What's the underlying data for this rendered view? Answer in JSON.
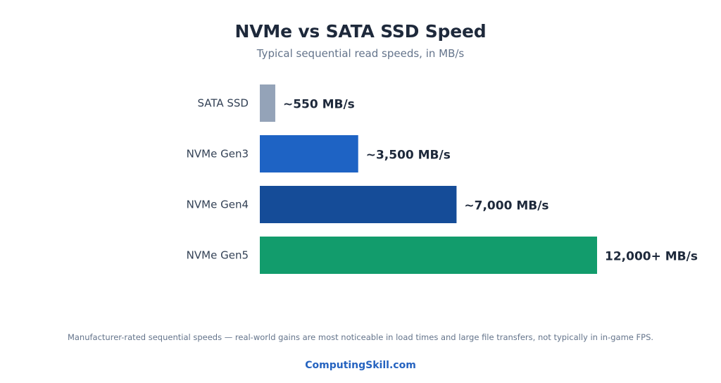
{
  "header": {
    "title": "NVMe vs SATA SSD Speed",
    "subtitle": "Typical sequential read speeds, in MB/s"
  },
  "chart_data": {
    "type": "bar",
    "orientation": "horizontal",
    "title": "NVMe vs SATA SSD Speed",
    "subtitle": "Typical sequential read speeds, in MB/s",
    "categories": [
      "SATA SSD",
      "NVMe Gen3",
      "NVMe Gen4",
      "NVMe Gen5"
    ],
    "values": [
      550,
      3500,
      7000,
      12000
    ],
    "value_labels": [
      "~550 MB/s",
      "~3,500 MB/s",
      "~7,000 MB/s",
      "12,000+ MB/s"
    ],
    "colors": [
      "#94a3b8",
      "#1e63c4",
      "#154c98",
      "#129c6c"
    ],
    "xlim": [
      0,
      12000
    ],
    "xlabel": "",
    "ylabel": "",
    "grid": false,
    "legend": "none"
  },
  "footer": {
    "note": "Manufacturer-rated sequential speeds — real-world gains are most noticeable in load times and large file transfers, not typically in in-game FPS.",
    "brand": "ComputingSkill.com"
  }
}
